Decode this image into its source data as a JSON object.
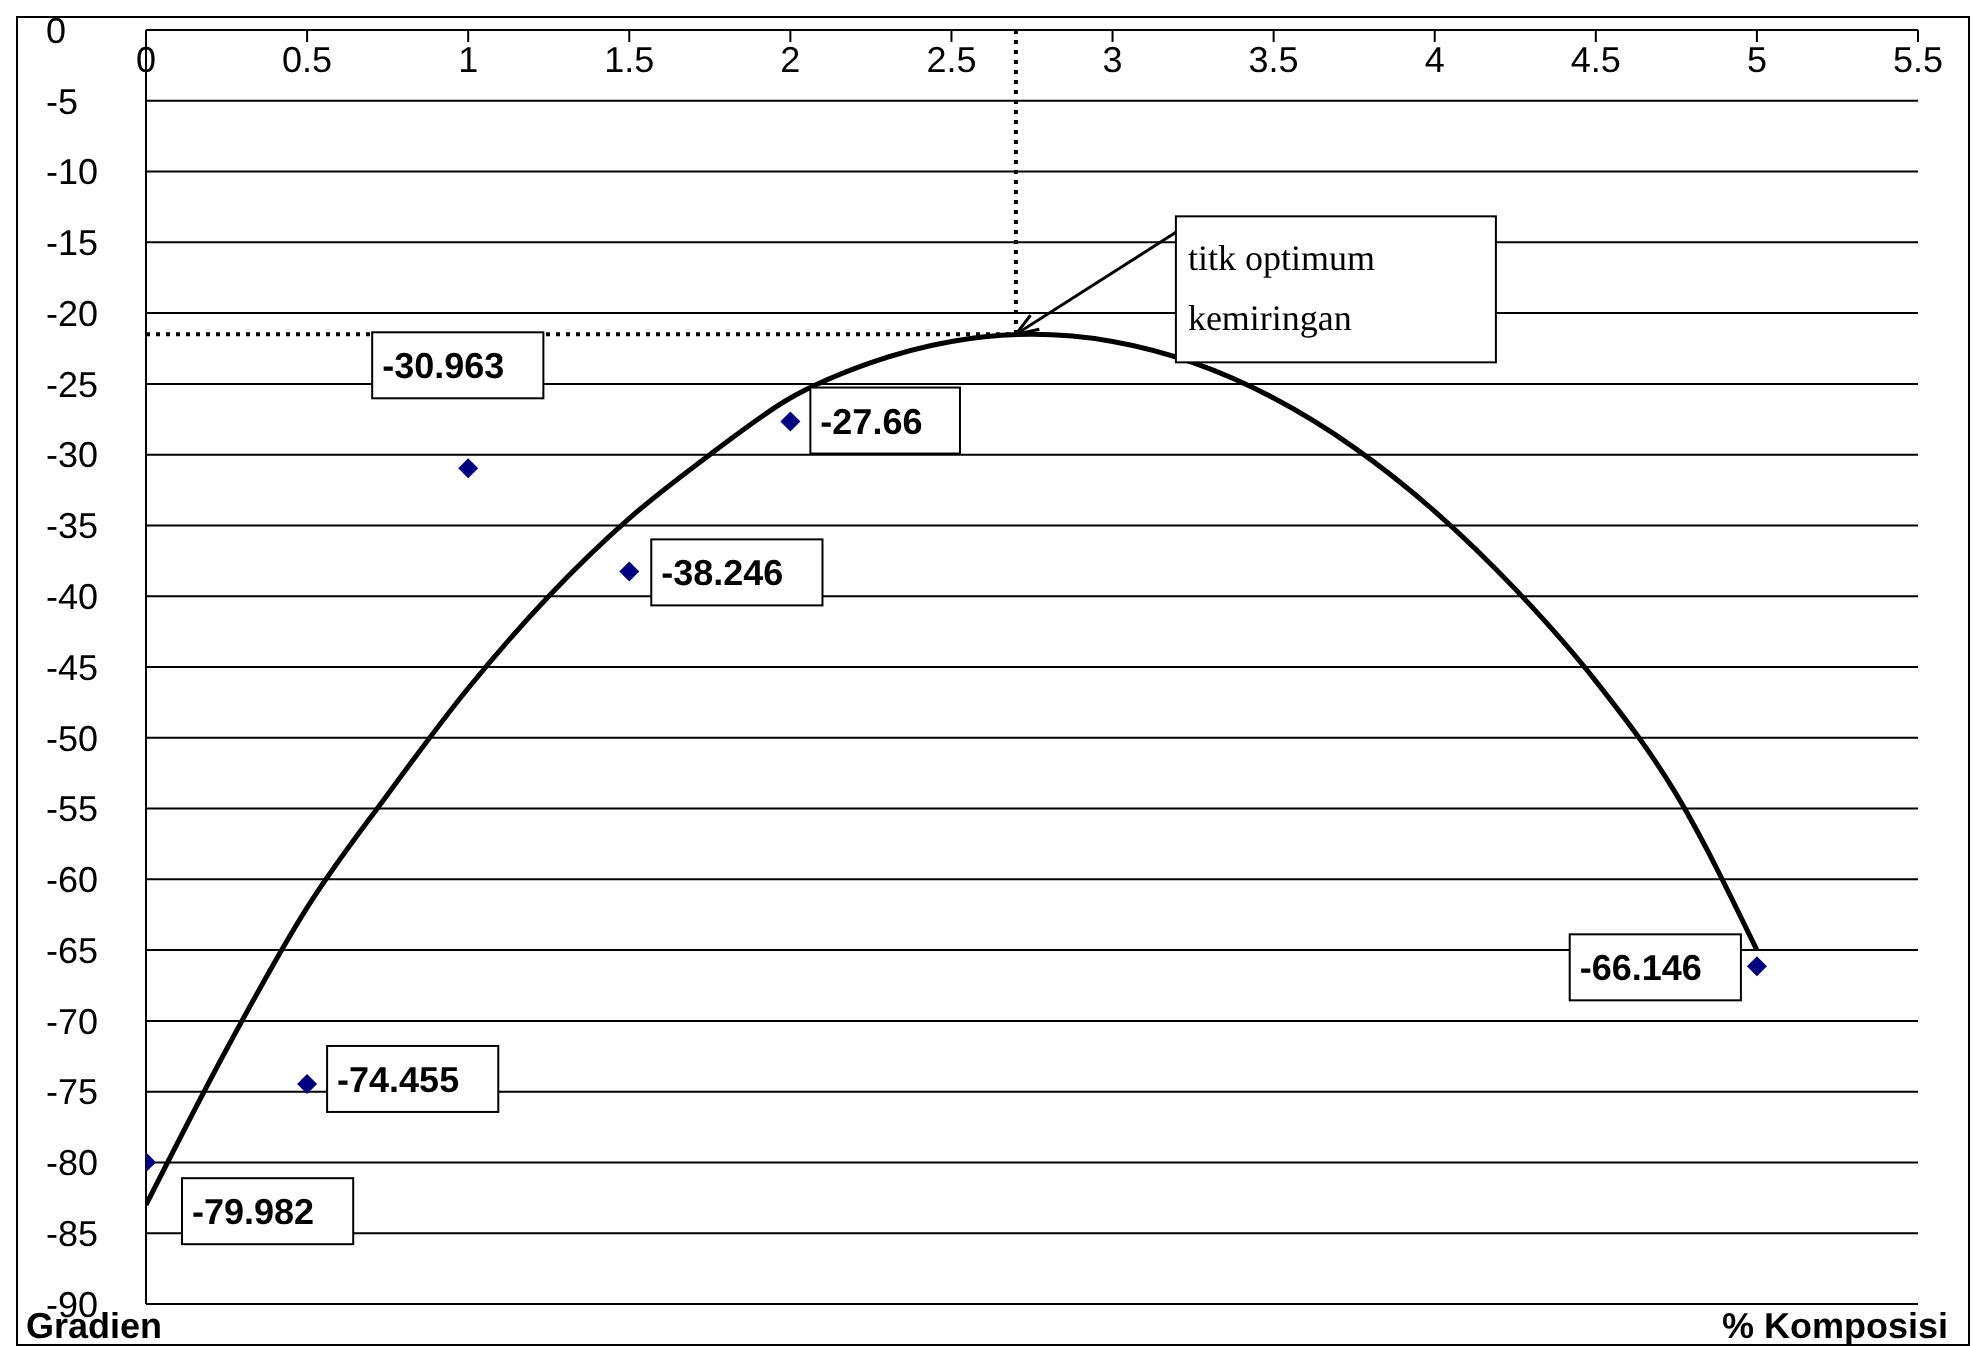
{
  "chart_data": {
    "type": "scatter",
    "xlabel": "% Komposisi",
    "ylabel": "Gradien",
    "xlim": [
      0,
      5.5
    ],
    "xticks": [
      0,
      0.5,
      1,
      1.5,
      2,
      2.5,
      3,
      3.5,
      4,
      4.5,
      5,
      5.5
    ],
    "ylim": [
      -90,
      0
    ],
    "yticks": [
      0,
      -5,
      -10,
      -15,
      -20,
      -25,
      -30,
      -35,
      -40,
      -45,
      -50,
      -55,
      -60,
      -65,
      -70,
      -75,
      -80,
      -85,
      -90
    ],
    "grid": "y",
    "marker": "diamond",
    "series": [
      {
        "color": "#000080",
        "x": [
          0,
          0.5,
          1,
          1.5,
          2,
          5
        ],
        "values": [
          -79.982,
          -74.455,
          -30.963,
          -38.246,
          -27.66,
          -66.146
        ],
        "value_labels": [
          "-79.982",
          "-74.455",
          "-30.963",
          "-38.246",
          "-27.66",
          "-66.146"
        ]
      },
      {
        "type": "line",
        "color": "#000000",
        "marker": "none",
        "x": [
          0,
          0.25,
          0.5,
          0.75,
          1,
          1.25,
          1.5,
          1.75,
          2,
          2.25,
          2.5,
          2.75,
          3,
          3.25,
          3.5,
          3.75,
          4,
          4.25,
          4.5,
          4.75,
          5
        ],
        "values": [
          -83,
          -72,
          -62,
          -54,
          -46.5,
          -40,
          -34.5,
          -30,
          -26,
          -23.5,
          -22,
          -21.5,
          -22,
          -23.5,
          -26,
          -29.5,
          -34,
          -39.5,
          -46,
          -54,
          -65
        ]
      }
    ],
    "ref_lines": [
      {
        "axis": "x",
        "value": 2.7,
        "line_style": "dotted",
        "color": "#000000"
      },
      {
        "axis": "y",
        "value": -21.5,
        "line_style": "dotted",
        "color": "#000000"
      }
    ],
    "annotations": [
      {
        "text": "titk optimum kemiringan",
        "x": 2.7,
        "y": -21.5
      }
    ]
  }
}
